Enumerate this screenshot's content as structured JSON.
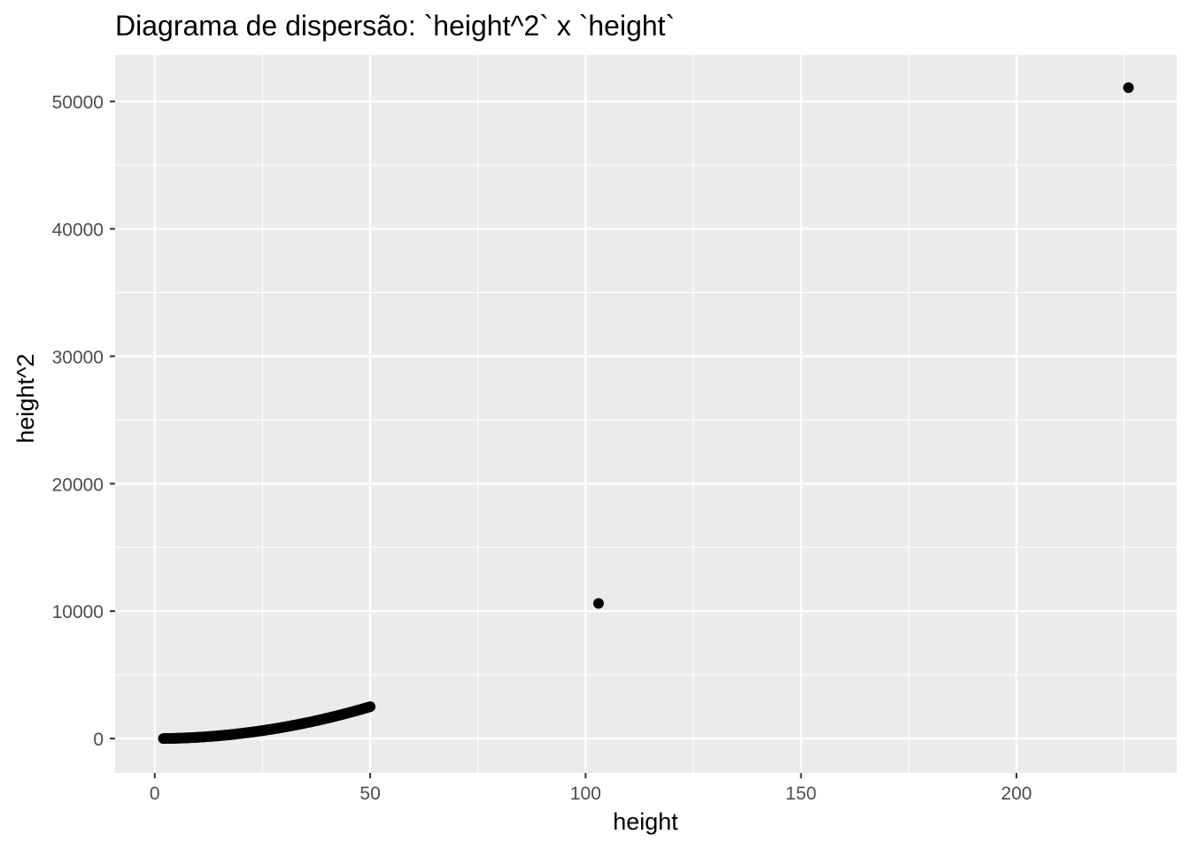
{
  "chart_data": {
    "type": "scatter",
    "title": "Diagrama de dispersão: `height^2` x `height`",
    "xlabel": "height",
    "ylabel": "height^2",
    "xlim": [
      -9.2,
      237.2
    ],
    "ylim": [
      -2700,
      53650
    ],
    "x_ticks": [
      0,
      50,
      100,
      150,
      200
    ],
    "x_tick_labels": [
      "0",
      "50",
      "100",
      "150",
      "200"
    ],
    "y_ticks": [
      0,
      10000,
      20000,
      30000,
      40000,
      50000
    ],
    "y_tick_labels": [
      "0",
      "10000",
      "20000",
      "30000",
      "40000",
      "50000"
    ],
    "grid": true,
    "panel_background": "#ebebeb",
    "grid_color": "#ffffff",
    "point_color": "#000000",
    "curve": {
      "formula": "y = x^2",
      "x_from": 2,
      "x_to": 50,
      "step": 0.25
    },
    "outliers": [
      {
        "x": 103,
        "y": 10609
      },
      {
        "x": 226,
        "y": 51076
      }
    ]
  }
}
